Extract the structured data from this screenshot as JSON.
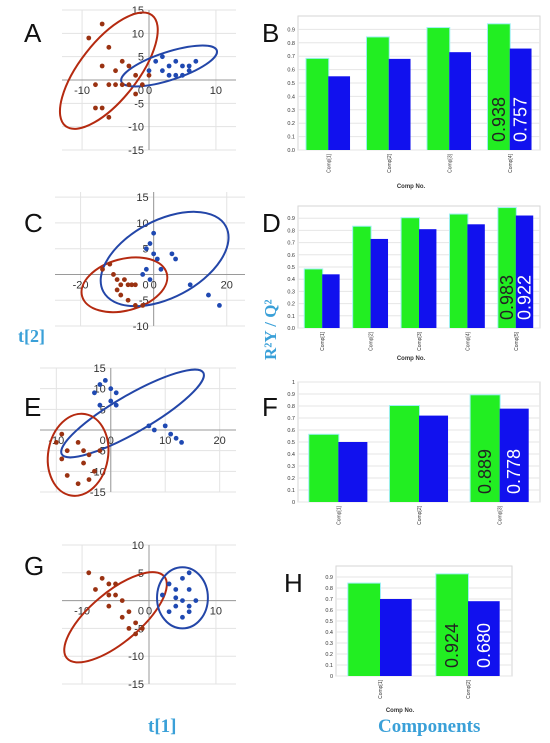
{
  "figure": {
    "xlabel": "t[1]",
    "ylabel": "t[2]",
    "components_label": "Components",
    "bar_ylabel": "R²Y / Q²",
    "bar_xlabel": "Comp No."
  },
  "colors": {
    "r2y": "#22ee22",
    "q2": "#1111ee",
    "ellipse_red": "#b52a10",
    "ellipse_blue": "#2346a8",
    "point_red": "#9a3212",
    "point_blue": "#1f49b2",
    "axis_label": "#3aa0d8"
  },
  "chart_data": [
    {
      "panel": "A",
      "type": "scatter",
      "xticks": [
        "-10",
        "0",
        "10"
      ],
      "yticks": [
        "15",
        "10",
        "5",
        "0",
        "-5",
        "-10",
        "-15"
      ],
      "xlim": [
        -13,
        13
      ],
      "ylim": [
        -15,
        15
      ],
      "ellipses": [
        {
          "group": "red",
          "cx": -6,
          "cy": 2,
          "rx": 10.5,
          "ry": 6.2,
          "angle": -52
        },
        {
          "group": "blue",
          "cx": 3,
          "cy": 3,
          "rx": 7.5,
          "ry": 3,
          "angle": -18
        }
      ],
      "series": [
        {
          "group": "red",
          "points": [
            [
              -9,
              9
            ],
            [
              -7,
              12
            ],
            [
              -6,
              7
            ],
            [
              -7,
              3
            ],
            [
              -5,
              2
            ],
            [
              -4,
              4
            ],
            [
              -3,
              3
            ],
            [
              -8,
              -1
            ],
            [
              -6,
              -1
            ],
            [
              -5,
              -1
            ],
            [
              -4,
              -1
            ],
            [
              -3,
              -1
            ],
            [
              -2,
              1
            ],
            [
              -1,
              -1
            ],
            [
              -7,
              -6
            ],
            [
              -6,
              -8
            ],
            [
              -8,
              -6
            ],
            [
              0,
              1
            ],
            [
              -2,
              -3
            ]
          ]
        },
        {
          "group": "blue",
          "points": [
            [
              1,
              4
            ],
            [
              2,
              5
            ],
            [
              3,
              3
            ],
            [
              4,
              4
            ],
            [
              5,
              3
            ],
            [
              6,
              2
            ],
            [
              3,
              1
            ],
            [
              2,
              2
            ],
            [
              4,
              1
            ],
            [
              5,
              1
            ],
            [
              0,
              2
            ],
            [
              7,
              4
            ],
            [
              6,
              3
            ]
          ]
        }
      ]
    },
    {
      "panel": "B",
      "type": "bar",
      "categories": [
        "Comp[1]",
        "Comp[2]",
        "Comp[3]",
        "Comp[4]"
      ],
      "yticks": [
        "0.9",
        "0.8",
        "0.7",
        "0.6",
        "0.5",
        "0.4",
        "0.3",
        "0.2",
        "0.1",
        "0.0"
      ],
      "ylim": [
        0,
        1
      ],
      "series": [
        {
          "values": [
            0.68,
            0.84,
            0.91,
            0.938
          ]
        },
        {
          "values": [
            0.55,
            0.68,
            0.73,
            0.757
          ]
        }
      ],
      "annotations": [
        "0.938",
        "0.757"
      ]
    },
    {
      "panel": "C",
      "type": "scatter",
      "xticks": [
        "-20",
        "0",
        "20"
      ],
      "yticks": [
        "15",
        "10",
        "5",
        "0",
        "-5",
        "-10"
      ],
      "xlim": [
        -27,
        25
      ],
      "ylim": [
        -10,
        16
      ],
      "ellipses": [
        {
          "group": "red",
          "cx": -8,
          "cy": -2,
          "rx": 12,
          "ry": 5,
          "angle": -15
        },
        {
          "group": "blue",
          "cx": 3,
          "cy": 3,
          "rx": 19,
          "ry": 7.5,
          "angle": -28
        }
      ],
      "series": [
        {
          "group": "red",
          "points": [
            [
              -14,
              1
            ],
            [
              -12,
              2
            ],
            [
              -11,
              0
            ],
            [
              -10,
              -1
            ],
            [
              -9,
              -2
            ],
            [
              -8,
              -1
            ],
            [
              -7,
              -2
            ],
            [
              -6,
              -2
            ],
            [
              -5,
              -2
            ],
            [
              -9,
              -4
            ],
            [
              -7,
              -5
            ],
            [
              -5,
              -6
            ],
            [
              -3,
              -6
            ],
            [
              -10,
              -3
            ]
          ]
        },
        {
          "group": "blue",
          "points": [
            [
              -1,
              6
            ],
            [
              0,
              8
            ],
            [
              -2,
              5
            ],
            [
              0,
              4
            ],
            [
              1,
              3
            ],
            [
              -3,
              0
            ],
            [
              -2,
              1
            ],
            [
              -1,
              -1
            ],
            [
              2,
              1
            ],
            [
              5,
              4
            ],
            [
              6,
              3
            ],
            [
              15,
              -4
            ],
            [
              18,
              -6
            ],
            [
              10,
              -2
            ]
          ]
        }
      ]
    },
    {
      "panel": "D",
      "type": "bar",
      "categories": [
        "Comp[1]",
        "Comp[2]",
        "Comp[3]",
        "Comp[4]",
        "Comp[5]"
      ],
      "yticks": [
        "0.9",
        "0.8",
        "0.7",
        "0.6",
        "0.5",
        "0.4",
        "0.3",
        "0.2",
        "0.1",
        "0.0"
      ],
      "ylim": [
        0,
        1
      ],
      "series": [
        {
          "values": [
            0.48,
            0.83,
            0.9,
            0.93,
            0.983
          ]
        },
        {
          "values": [
            0.44,
            0.73,
            0.81,
            0.85,
            0.922
          ]
        }
      ],
      "annotations": [
        "0.983",
        "0.922"
      ]
    },
    {
      "panel": "E",
      "type": "scatter",
      "xticks": [
        "-10",
        "0",
        "10",
        "20"
      ],
      "yticks": [
        "15",
        "10",
        "5",
        "0",
        "-5",
        "-10",
        "-15"
      ],
      "xlim": [
        -13,
        23
      ],
      "ylim": [
        -15,
        15
      ],
      "ellipses": [
        {
          "group": "blue",
          "cx": 4,
          "cy": 4,
          "rx": 15,
          "ry": 4.5,
          "angle": -30
        },
        {
          "group": "red",
          "cx": -6,
          "cy": -6,
          "rx": 5.5,
          "ry": 10,
          "angle": 10
        }
      ],
      "series": [
        {
          "group": "blue",
          "points": [
            [
              -2,
              11
            ],
            [
              -1,
              12
            ],
            [
              0,
              10
            ],
            [
              1,
              9
            ],
            [
              -3,
              9
            ],
            [
              -2,
              6
            ],
            [
              0,
              7
            ],
            [
              1,
              6
            ],
            [
              7,
              1
            ],
            [
              8,
              0
            ],
            [
              10,
              1
            ],
            [
              11,
              -1
            ],
            [
              12,
              -2
            ],
            [
              13,
              -3
            ]
          ]
        },
        {
          "group": "red",
          "points": [
            [
              -9,
              -1
            ],
            [
              -10,
              -3
            ],
            [
              -8,
              -5
            ],
            [
              -9,
              -7
            ],
            [
              -6,
              -3
            ],
            [
              -5,
              -5
            ],
            [
              -4,
              -6
            ],
            [
              -5,
              -8
            ],
            [
              -3,
              -10
            ],
            [
              -4,
              -12
            ],
            [
              -6,
              -13
            ],
            [
              -8,
              -11
            ],
            [
              -2,
              -5
            ]
          ]
        }
      ]
    },
    {
      "panel": "F",
      "type": "bar",
      "categories": [
        "Comp[1]",
        "Comp[2]",
        "Comp[3]"
      ],
      "yticks": [
        "1",
        "0.9",
        "0.8",
        "0.7",
        "0.6",
        "0.5",
        "0.4",
        "0.3",
        "0.2",
        "0.1",
        "0"
      ],
      "ylim": [
        0,
        1
      ],
      "series": [
        {
          "values": [
            0.56,
            0.8,
            0.889
          ]
        },
        {
          "values": [
            0.5,
            0.72,
            0.778
          ]
        }
      ],
      "annotations": [
        "0.889",
        "0.778"
      ]
    },
    {
      "panel": "G",
      "type": "scatter",
      "xticks": [
        "-10",
        "0",
        "10"
      ],
      "yticks": [
        "10",
        "5",
        "0",
        "-5",
        "-10",
        "-15"
      ],
      "xlim": [
        -13,
        13
      ],
      "ylim": [
        -15,
        10
      ],
      "ellipses": [
        {
          "group": "red",
          "cx": -5,
          "cy": -3,
          "rx": 9.5,
          "ry": 4.5,
          "angle": -40
        },
        {
          "group": "blue",
          "cx": 5,
          "cy": 0.5,
          "rx": 3.8,
          "ry": 5.5,
          "angle": 0
        }
      ],
      "series": [
        {
          "group": "red",
          "points": [
            [
              -9,
              5
            ],
            [
              -7,
              4
            ],
            [
              -6,
              3
            ],
            [
              -8,
              2
            ],
            [
              -5,
              1
            ],
            [
              -4,
              0
            ],
            [
              -6,
              -1
            ],
            [
              -3,
              -2
            ],
            [
              -2,
              -4
            ],
            [
              -1,
              -5
            ],
            [
              -2,
              -6
            ],
            [
              -4,
              -3
            ],
            [
              -3,
              -5
            ],
            [
              -6,
              1
            ],
            [
              -5,
              3
            ]
          ]
        },
        {
          "group": "blue",
          "points": [
            [
              3,
              3
            ],
            [
              4,
              2
            ],
            [
              5,
              4
            ],
            [
              6,
              2
            ],
            [
              5,
              0
            ],
            [
              4,
              -1
            ],
            [
              6,
              -1
            ],
            [
              7,
              0
            ],
            [
              3,
              -2
            ],
            [
              5,
              -3
            ],
            [
              6,
              5
            ],
            [
              2,
              1
            ],
            [
              4,
              0.5
            ],
            [
              6,
              -2
            ]
          ]
        }
      ]
    },
    {
      "panel": "H",
      "type": "bar",
      "categories": [
        "Comp[1]",
        "Comp[2]"
      ],
      "yticks": [
        "0.9",
        "0.8",
        "0.7",
        "0.6",
        "0.5",
        "0.4",
        "0.3",
        "0.2",
        "0.1",
        "0"
      ],
      "ylim": [
        0,
        1
      ],
      "series": [
        {
          "values": [
            0.84,
            0.924
          ]
        },
        {
          "values": [
            0.7,
            0.68
          ]
        }
      ],
      "annotations": [
        "0.924",
        "0.680"
      ]
    }
  ]
}
